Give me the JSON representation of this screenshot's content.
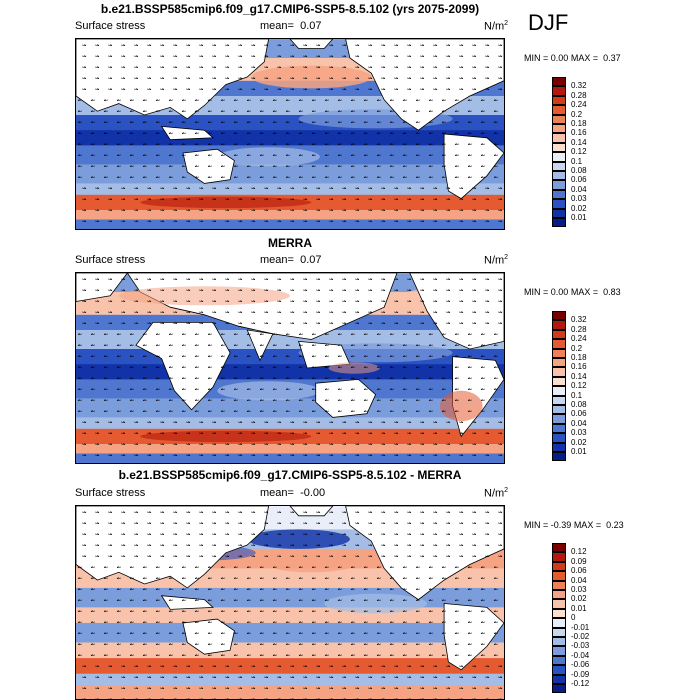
{
  "season": "DJF",
  "panels": [
    {
      "title": "b.e21.BSSP585cmip6.f09_g17.CMIP6-SSP5-8.5.102 (yrs 2075-2099)",
      "left_label": "Surface stress",
      "mean_label": "mean=",
      "mean_value": "0.07",
      "units": "N/m",
      "units_sup": "2",
      "min_label": "MIN =",
      "min_value": "0.00",
      "max_label": "MAX =",
      "max_value": "0.37",
      "colorbar_labels": [
        "0.32",
        "0.28",
        "0.24",
        "0.2",
        "0.18",
        "0.16",
        "0.14",
        "0.12",
        "0.1",
        "0.08",
        "0.06",
        "0.04",
        "0.03",
        "0.02",
        "0.01"
      ],
      "colorbar_colors": [
        "#7a0000",
        "#b2180c",
        "#d33a1a",
        "#e65a32",
        "#f08059",
        "#f6a383",
        "#f9c3ab",
        "#fbdfcf",
        "#e9eef8",
        "#c9d8f0",
        "#a4bde6",
        "#7b9ddb",
        "#4f77cf",
        "#2b52c2",
        "#1232a8",
        "#061c86"
      ]
    },
    {
      "title": "MERRA",
      "left_label": "Surface stress",
      "mean_label": "mean=",
      "mean_value": "0.07",
      "units": "N/m",
      "units_sup": "2",
      "min_label": "MIN =",
      "min_value": "0.00",
      "max_label": "MAX =",
      "max_value": "0.83",
      "colorbar_labels": [
        "0.32",
        "0.28",
        "0.24",
        "0.2",
        "0.18",
        "0.16",
        "0.14",
        "0.12",
        "0.1",
        "0.08",
        "0.06",
        "0.04",
        "0.03",
        "0.02",
        "0.01"
      ],
      "colorbar_colors": [
        "#7a0000",
        "#b2180c",
        "#d33a1a",
        "#e65a32",
        "#f08059",
        "#f6a383",
        "#f9c3ab",
        "#fbdfcf",
        "#e9eef8",
        "#c9d8f0",
        "#a4bde6",
        "#7b9ddb",
        "#4f77cf",
        "#2b52c2",
        "#1232a8",
        "#061c86"
      ]
    },
    {
      "title": "b.e21.BSSP585cmip6.f09_g17.CMIP6-SSP5-8.5.102 - MERRA",
      "left_label": "Surface stress",
      "mean_label": "mean=",
      "mean_value": "-0.00",
      "units": "N/m",
      "units_sup": "2",
      "min_label": "MIN =",
      "min_value": "-0.39",
      "max_label": "MAX =",
      "max_value": "0.23",
      "colorbar_labels": [
        "0.12",
        "0.09",
        "0.06",
        "0.04",
        "0.03",
        "0.02",
        "0.01",
        "0",
        "-0.01",
        "-0.02",
        "-0.03",
        "-0.04",
        "-0.06",
        "-0.09",
        "-0.12"
      ],
      "colorbar_colors": [
        "#7a0000",
        "#b2180c",
        "#d33a1a",
        "#e65a32",
        "#f08059",
        "#f6a383",
        "#f9c3ab",
        "#fbdfcf",
        "#e9eef8",
        "#c9d8f0",
        "#a4bde6",
        "#7b9ddb",
        "#4f77cf",
        "#2b52c2",
        "#1232a8",
        "#061c86"
      ]
    }
  ],
  "chart_data": [
    {
      "type": "heatmap",
      "title": "b.e21.BSSP585cmip6.f09_g17.CMIP6-SSP5-8.5.102 (yrs 2075-2099)",
      "variable": "Surface stress",
      "units": "N/m2",
      "mean": 0.07,
      "min": 0.0,
      "max": 0.37,
      "levels": [
        0.01,
        0.02,
        0.03,
        0.04,
        0.06,
        0.08,
        0.1,
        0.12,
        0.14,
        0.16,
        0.18,
        0.2,
        0.24,
        0.28,
        0.32
      ],
      "projection": "cylindrical equidistant, Pacific-centred",
      "overlay": "wind stress vectors"
    },
    {
      "type": "heatmap",
      "title": "MERRA",
      "variable": "Surface stress",
      "units": "N/m2",
      "mean": 0.07,
      "min": 0.0,
      "max": 0.83,
      "levels": [
        0.01,
        0.02,
        0.03,
        0.04,
        0.06,
        0.08,
        0.1,
        0.12,
        0.14,
        0.16,
        0.18,
        0.2,
        0.24,
        0.28,
        0.32
      ],
      "projection": "cylindrical equidistant, Atlantic-centred",
      "overlay": "wind stress vectors"
    },
    {
      "type": "heatmap",
      "title": "b.e21.BSSP585cmip6.f09_g17.CMIP6-SSP5-8.5.102 - MERRA",
      "variable": "Surface stress",
      "units": "N/m2",
      "mean": -0.0,
      "min": -0.39,
      "max": 0.23,
      "levels": [
        -0.12,
        -0.09,
        -0.06,
        -0.04,
        -0.03,
        -0.02,
        -0.01,
        0,
        0.01,
        0.02,
        0.03,
        0.04,
        0.06,
        0.09,
        0.12
      ],
      "projection": "cylindrical equidistant, Pacific-centred",
      "overlay": "wind stress difference vectors"
    }
  ]
}
